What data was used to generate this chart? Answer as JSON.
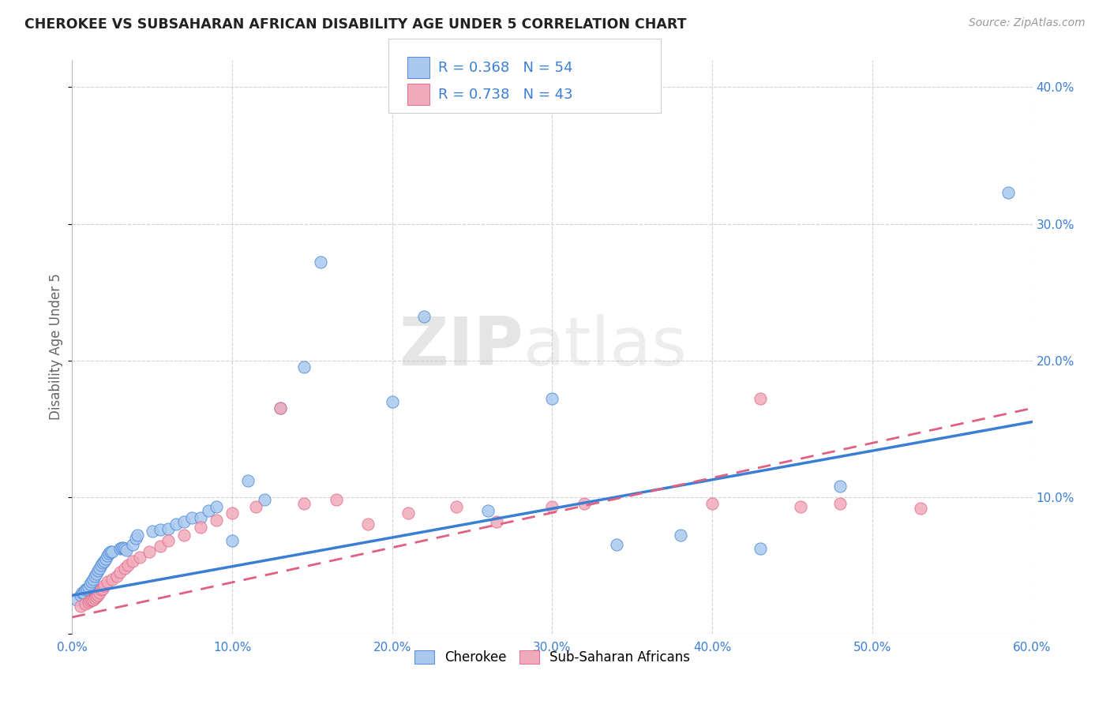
{
  "title": "CHEROKEE VS SUBSAHARAN AFRICAN DISABILITY AGE UNDER 5 CORRELATION CHART",
  "source": "Source: ZipAtlas.com",
  "ylabel": "Disability Age Under 5",
  "xlim": [
    0.0,
    0.6
  ],
  "ylim": [
    0.0,
    0.42
  ],
  "xticks": [
    0.0,
    0.1,
    0.2,
    0.3,
    0.4,
    0.5,
    0.6
  ],
  "yticks": [
    0.0,
    0.1,
    0.2,
    0.3,
    0.4
  ],
  "xtick_labels": [
    "0.0%",
    "10.0%",
    "20.0%",
    "30.0%",
    "40.0%",
    "50.0%",
    "60.0%"
  ],
  "ytick_labels_right": [
    "",
    "10.0%",
    "20.0%",
    "30.0%",
    "40.0%"
  ],
  "background_color": "#ffffff",
  "grid_color": "#d0d0d0",
  "cherokee_color": "#aac8ee",
  "subsaharan_color": "#f0aabb",
  "cherokee_line_color": "#3a7fd5",
  "subsaharan_line_color": "#e06080",
  "tick_color": "#3a7fd5",
  "ylabel_color": "#666666",
  "legend_label1": "Cherokee",
  "legend_label2": "Sub-Saharan Africans",
  "watermark_zip": "ZIP",
  "watermark_atlas": "atlas",
  "cherokee_x": [
    0.003,
    0.005,
    0.006,
    0.007,
    0.008,
    0.009,
    0.01,
    0.011,
    0.012,
    0.013,
    0.014,
    0.015,
    0.016,
    0.017,
    0.018,
    0.019,
    0.02,
    0.021,
    0.022,
    0.023,
    0.024,
    0.025,
    0.03,
    0.031,
    0.032,
    0.033,
    0.034,
    0.038,
    0.04,
    0.041,
    0.05,
    0.055,
    0.06,
    0.065,
    0.07,
    0.075,
    0.08,
    0.085,
    0.09,
    0.1,
    0.11,
    0.12,
    0.13,
    0.145,
    0.155,
    0.2,
    0.22,
    0.26,
    0.3,
    0.34,
    0.38,
    0.43,
    0.48,
    0.585
  ],
  "cherokee_y": [
    0.025,
    0.028,
    0.03,
    0.03,
    0.032,
    0.033,
    0.034,
    0.036,
    0.038,
    0.04,
    0.042,
    0.044,
    0.046,
    0.048,
    0.05,
    0.052,
    0.053,
    0.055,
    0.057,
    0.059,
    0.06,
    0.06,
    0.062,
    0.063,
    0.063,
    0.062,
    0.061,
    0.065,
    0.07,
    0.072,
    0.075,
    0.076,
    0.077,
    0.08,
    0.082,
    0.085,
    0.085,
    0.09,
    0.093,
    0.068,
    0.112,
    0.098,
    0.165,
    0.195,
    0.272,
    0.17,
    0.232,
    0.09,
    0.172,
    0.065,
    0.072,
    0.062,
    0.108,
    0.323
  ],
  "subsaharan_x": [
    0.005,
    0.008,
    0.01,
    0.011,
    0.012,
    0.013,
    0.014,
    0.015,
    0.016,
    0.017,
    0.018,
    0.019,
    0.02,
    0.022,
    0.025,
    0.028,
    0.03,
    0.033,
    0.035,
    0.038,
    0.042,
    0.048,
    0.055,
    0.06,
    0.07,
    0.08,
    0.09,
    0.1,
    0.115,
    0.13,
    0.145,
    0.165,
    0.185,
    0.21,
    0.24,
    0.265,
    0.3,
    0.32,
    0.4,
    0.43,
    0.455,
    0.48,
    0.53
  ],
  "subsaharan_y": [
    0.02,
    0.022,
    0.023,
    0.024,
    0.025,
    0.025,
    0.026,
    0.027,
    0.028,
    0.03,
    0.032,
    0.033,
    0.035,
    0.038,
    0.04,
    0.042,
    0.045,
    0.048,
    0.05,
    0.053,
    0.056,
    0.06,
    0.064,
    0.068,
    0.072,
    0.078,
    0.083,
    0.088,
    0.093,
    0.165,
    0.095,
    0.098,
    0.08,
    0.088,
    0.093,
    0.082,
    0.093,
    0.095,
    0.095,
    0.172,
    0.093,
    0.095,
    0.092
  ],
  "cherokee_reg": [
    0.0,
    0.028,
    0.6,
    0.155
  ],
  "subsaharan_reg": [
    0.0,
    0.012,
    0.6,
    0.165
  ]
}
